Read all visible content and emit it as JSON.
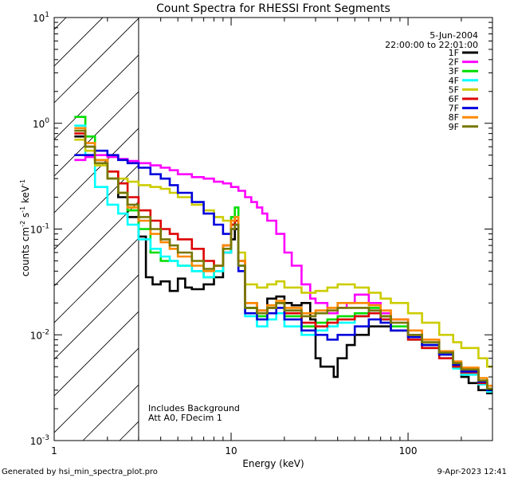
{
  "chart_data": {
    "type": "line",
    "title": "Count Spectra for RHESSI Front Segments",
    "xlabel": "Energy (keV)",
    "ylabel_parts": {
      "a": "counts cm",
      "a_sup": "-2",
      "b": " s",
      "b_sup": "-1",
      "c": " keV",
      "c_sup": "-1"
    },
    "xscale": "log",
    "yscale": "log",
    "xlim": [
      1,
      300
    ],
    "ylim": [
      0.001,
      10
    ],
    "x_ticks": [
      {
        "value": 1,
        "label": "1"
      },
      {
        "value": 10,
        "label": "10"
      },
      {
        "value": 100,
        "label": "100"
      }
    ],
    "y_ticks": [
      {
        "value": 0.001,
        "base": "10",
        "exp": "-3"
      },
      {
        "value": 0.01,
        "base": "10",
        "exp": "-2"
      },
      {
        "value": 0.1,
        "base": "10",
        "exp": "-1"
      },
      {
        "value": 1,
        "base": "10",
        "exp": "0"
      },
      {
        "value": 10,
        "base": "10",
        "exp": "1"
      }
    ],
    "excluded_region": {
      "from": 1,
      "to": 3
    },
    "legend_header": [
      "5-Jun-2004",
      "22:00:00 to 22:01:00"
    ],
    "legend_position": "top-right",
    "annotations": [
      "Includes Background",
      "Att A0, FDecim 1"
    ],
    "series": [
      {
        "name": "1F",
        "color": "#000000",
        "x": [
          1.3,
          1.5,
          1.7,
          2.0,
          2.3,
          2.6,
          3.0,
          3.3,
          3.6,
          4.0,
          4.5,
          5.0,
          5.5,
          6.0,
          7.0,
          8.0,
          9.0,
          10.0,
          10.5,
          11.0,
          12.0,
          14.0,
          16.0,
          18.0,
          20.0,
          22.0,
          25.0,
          28.0,
          30.0,
          32.0,
          35.0,
          38.0,
          40.0,
          45.0,
          50.0,
          60.0,
          70.0,
          80.0,
          100.0,
          120.0,
          150.0,
          180.0,
          200.0,
          220.0,
          250.0,
          280.0
        ],
        "y": [
          0.75,
          0.6,
          0.45,
          0.3,
          0.2,
          0.13,
          0.085,
          0.035,
          0.03,
          0.032,
          0.026,
          0.034,
          0.028,
          0.027,
          0.03,
          0.035,
          0.06,
          0.08,
          0.1,
          0.045,
          0.018,
          0.017,
          0.022,
          0.023,
          0.02,
          0.019,
          0.02,
          0.014,
          0.006,
          0.005,
          0.005,
          0.004,
          0.006,
          0.008,
          0.01,
          0.012,
          0.012,
          0.011,
          0.01,
          0.008,
          0.0065,
          0.005,
          0.004,
          0.0035,
          0.003,
          0.0028
        ]
      },
      {
        "name": "2F",
        "color": "#ff00ff",
        "x": [
          1.3,
          1.5,
          1.7,
          2.0,
          2.3,
          2.6,
          3.0,
          3.5,
          4.0,
          4.5,
          5.0,
          6.0,
          7.0,
          8.0,
          9.0,
          10.0,
          11.0,
          12.0,
          13.0,
          14.0,
          15.0,
          16.0,
          18.0,
          20.0,
          22.0,
          25.0,
          28.0,
          30.0,
          35.0,
          40.0,
          45.0,
          50.0,
          60.0,
          70.0,
          80.0,
          100.0,
          120.0,
          150.0,
          180.0,
          200.0,
          250.0,
          280.0
        ],
        "y": [
          0.45,
          0.48,
          0.5,
          0.48,
          0.46,
          0.44,
          0.42,
          0.4,
          0.38,
          0.36,
          0.33,
          0.31,
          0.3,
          0.28,
          0.27,
          0.25,
          0.23,
          0.2,
          0.18,
          0.16,
          0.14,
          0.12,
          0.09,
          0.06,
          0.045,
          0.03,
          0.022,
          0.02,
          0.016,
          0.018,
          0.02,
          0.024,
          0.02,
          0.016,
          0.014,
          0.01,
          0.008,
          0.0065,
          0.005,
          0.0045,
          0.0035,
          0.003
        ]
      },
      {
        "name": "3F",
        "color": "#00dd00",
        "x": [
          1.3,
          1.5,
          1.7,
          2.0,
          2.3,
          2.6,
          3.0,
          3.5,
          4.0,
          4.5,
          5.0,
          6.0,
          7.0,
          8.0,
          9.0,
          10.0,
          10.5,
          11.0,
          12.0,
          14.0,
          16.0,
          18.0,
          20.0,
          25.0,
          30.0,
          35.0,
          40.0,
          50.0,
          60.0,
          70.0,
          80.0,
          100.0,
          120.0,
          150.0,
          180.0,
          200.0,
          250.0,
          280.0
        ],
        "y": [
          1.15,
          0.75,
          0.45,
          0.3,
          0.22,
          0.15,
          0.1,
          0.06,
          0.05,
          0.05,
          0.045,
          0.04,
          0.035,
          0.04,
          0.07,
          0.13,
          0.16,
          0.05,
          0.018,
          0.015,
          0.018,
          0.02,
          0.015,
          0.012,
          0.013,
          0.014,
          0.015,
          0.016,
          0.018,
          0.015,
          0.012,
          0.01,
          0.008,
          0.0065,
          0.005,
          0.0045,
          0.0035,
          0.003
        ]
      },
      {
        "name": "4F",
        "color": "#00ffff",
        "x": [
          1.3,
          1.5,
          1.7,
          2.0,
          2.3,
          2.6,
          3.0,
          3.5,
          4.0,
          4.5,
          5.0,
          6.0,
          7.0,
          8.0,
          9.0,
          10.0,
          10.5,
          11.0,
          12.0,
          14.0,
          16.0,
          18.0,
          20.0,
          25.0,
          30.0,
          35.0,
          40.0,
          50.0,
          60.0,
          70.0,
          80.0,
          100.0,
          120.0,
          150.0,
          180.0,
          200.0,
          250.0,
          280.0
        ],
        "y": [
          0.95,
          0.5,
          0.25,
          0.17,
          0.14,
          0.11,
          0.08,
          0.065,
          0.055,
          0.05,
          0.045,
          0.04,
          0.035,
          0.04,
          0.06,
          0.11,
          0.13,
          0.045,
          0.015,
          0.012,
          0.014,
          0.016,
          0.012,
          0.01,
          0.011,
          0.012,
          0.013,
          0.015,
          0.016,
          0.014,
          0.011,
          0.009,
          0.0075,
          0.006,
          0.0048,
          0.0042,
          0.0034,
          0.0029
        ]
      },
      {
        "name": "5F",
        "color": "#cccc00",
        "x": [
          1.3,
          1.5,
          1.7,
          2.0,
          2.3,
          2.6,
          3.0,
          3.5,
          4.0,
          4.5,
          5.0,
          6.0,
          7.0,
          8.0,
          9.0,
          10.0,
          10.5,
          11.0,
          12.0,
          14.0,
          16.0,
          18.0,
          20.0,
          25.0,
          30.0,
          35.0,
          40.0,
          50.0,
          60.0,
          70.0,
          80.0,
          100.0,
          120.0,
          150.0,
          180.0,
          200.0,
          250.0,
          280.0
        ],
        "y": [
          0.7,
          0.55,
          0.4,
          0.35,
          0.3,
          0.28,
          0.26,
          0.25,
          0.24,
          0.22,
          0.2,
          0.17,
          0.15,
          0.13,
          0.12,
          0.11,
          0.12,
          0.06,
          0.03,
          0.028,
          0.03,
          0.032,
          0.028,
          0.025,
          0.026,
          0.028,
          0.03,
          0.028,
          0.025,
          0.022,
          0.02,
          0.016,
          0.013,
          0.01,
          0.0085,
          0.0075,
          0.006,
          0.005
        ]
      },
      {
        "name": "6F",
        "color": "#dd0000",
        "x": [
          1.3,
          1.5,
          1.7,
          2.0,
          2.3,
          2.6,
          3.0,
          3.5,
          4.0,
          4.5,
          5.0,
          6.0,
          7.0,
          8.0,
          9.0,
          10.0,
          10.5,
          11.0,
          12.0,
          14.0,
          16.0,
          18.0,
          20.0,
          25.0,
          30.0,
          35.0,
          40.0,
          50.0,
          60.0,
          70.0,
          80.0,
          100.0,
          120.0,
          150.0,
          180.0,
          200.0,
          250.0,
          280.0
        ],
        "y": [
          0.8,
          0.6,
          0.45,
          0.35,
          0.27,
          0.2,
          0.15,
          0.12,
          0.1,
          0.09,
          0.08,
          0.065,
          0.05,
          0.045,
          0.07,
          0.11,
          0.12,
          0.05,
          0.02,
          0.016,
          0.018,
          0.02,
          0.016,
          0.013,
          0.012,
          0.013,
          0.014,
          0.015,
          0.016,
          0.014,
          0.011,
          0.009,
          0.0075,
          0.006,
          0.005,
          0.0044,
          0.0035,
          0.003
        ]
      },
      {
        "name": "7F",
        "color": "#0000dd",
        "x": [
          1.3,
          1.5,
          1.7,
          2.0,
          2.3,
          2.6,
          3.0,
          3.5,
          4.0,
          4.5,
          5.0,
          6.0,
          7.0,
          8.0,
          9.0,
          10.0,
          10.5,
          11.0,
          12.0,
          14.0,
          16.0,
          18.0,
          20.0,
          25.0,
          30.0,
          35.0,
          40.0,
          50.0,
          60.0,
          70.0,
          80.0,
          100.0,
          120.0,
          150.0,
          180.0,
          200.0,
          250.0,
          280.0
        ],
        "y": [
          0.5,
          0.5,
          0.55,
          0.5,
          0.45,
          0.42,
          0.38,
          0.33,
          0.3,
          0.26,
          0.22,
          0.18,
          0.14,
          0.11,
          0.09,
          0.1,
          0.11,
          0.04,
          0.016,
          0.014,
          0.016,
          0.018,
          0.014,
          0.011,
          0.01,
          0.009,
          0.01,
          0.012,
          0.014,
          0.013,
          0.011,
          0.0095,
          0.008,
          0.0065,
          0.0052,
          0.0045,
          0.0036,
          0.003
        ]
      },
      {
        "name": "8F",
        "color": "#ff8800",
        "x": [
          1.3,
          1.5,
          1.7,
          2.0,
          2.3,
          2.6,
          3.0,
          3.5,
          4.0,
          4.5,
          5.0,
          6.0,
          7.0,
          8.0,
          9.0,
          10.0,
          10.5,
          11.0,
          12.0,
          14.0,
          16.0,
          18.0,
          20.0,
          25.0,
          30.0,
          35.0,
          40.0,
          50.0,
          60.0,
          70.0,
          80.0,
          100.0,
          120.0,
          150.0,
          180.0,
          200.0,
          250.0,
          280.0
        ],
        "y": [
          0.9,
          0.65,
          0.45,
          0.3,
          0.22,
          0.16,
          0.12,
          0.09,
          0.075,
          0.065,
          0.055,
          0.045,
          0.04,
          0.045,
          0.07,
          0.12,
          0.13,
          0.05,
          0.02,
          0.017,
          0.019,
          0.021,
          0.018,
          0.016,
          0.017,
          0.018,
          0.02,
          0.02,
          0.019,
          0.017,
          0.014,
          0.011,
          0.009,
          0.007,
          0.0056,
          0.0049,
          0.0039,
          0.0033
        ]
      },
      {
        "name": "9F",
        "color": "#777700",
        "x": [
          1.3,
          1.5,
          1.7,
          2.0,
          2.3,
          2.6,
          3.0,
          3.5,
          4.0,
          4.5,
          5.0,
          6.0,
          7.0,
          8.0,
          9.0,
          10.0,
          10.5,
          11.0,
          12.0,
          14.0,
          16.0,
          18.0,
          20.0,
          25.0,
          30.0,
          35.0,
          40.0,
          50.0,
          60.0,
          70.0,
          80.0,
          100.0,
          120.0,
          150.0,
          180.0,
          200.0,
          250.0,
          280.0
        ],
        "y": [
          0.85,
          0.6,
          0.42,
          0.3,
          0.22,
          0.17,
          0.13,
          0.1,
          0.08,
          0.07,
          0.06,
          0.05,
          0.042,
          0.045,
          0.065,
          0.1,
          0.11,
          0.045,
          0.018,
          0.016,
          0.018,
          0.02,
          0.017,
          0.015,
          0.016,
          0.017,
          0.018,
          0.018,
          0.017,
          0.015,
          0.013,
          0.01,
          0.0085,
          0.0068,
          0.0054,
          0.0047,
          0.0037,
          0.0031
        ]
      }
    ]
  },
  "footer": {
    "left": "Generated by hsi_min_spectra_plot.pro",
    "right": "9-Apr-2023 12:41"
  }
}
